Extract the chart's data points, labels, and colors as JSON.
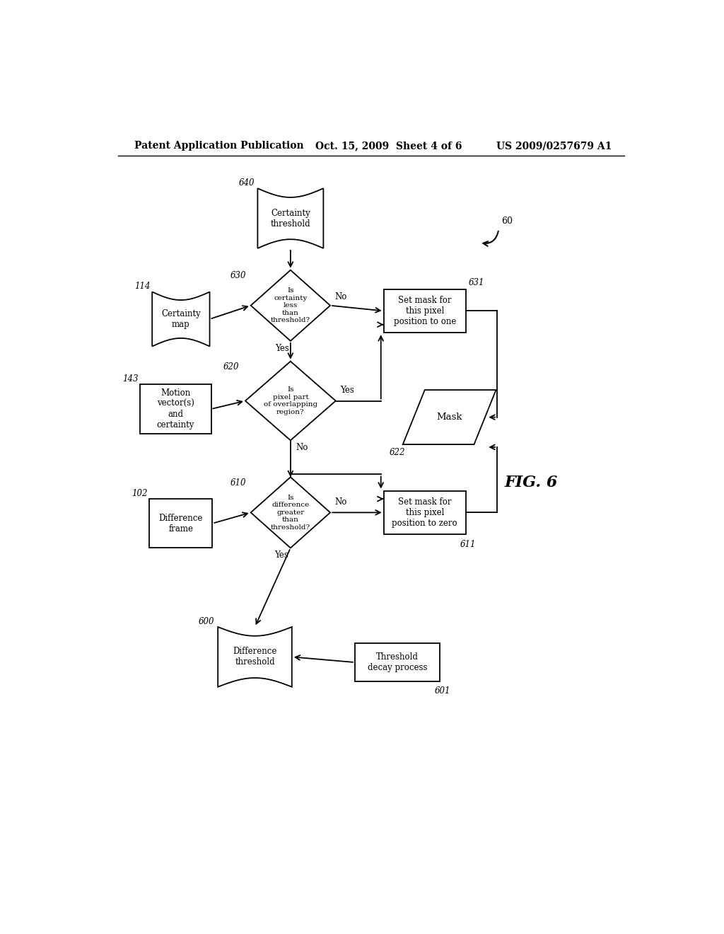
{
  "bg_color": "#ffffff",
  "header_left": "Patent Application Publication",
  "header_mid": "Oct. 15, 2009  Sheet 4 of 6",
  "header_right": "US 2009/0257679 A1",
  "fig_label": "FIG. 6",
  "lw": 1.3,
  "fontsize_label": 8.5,
  "fontsize_id": 8.5
}
